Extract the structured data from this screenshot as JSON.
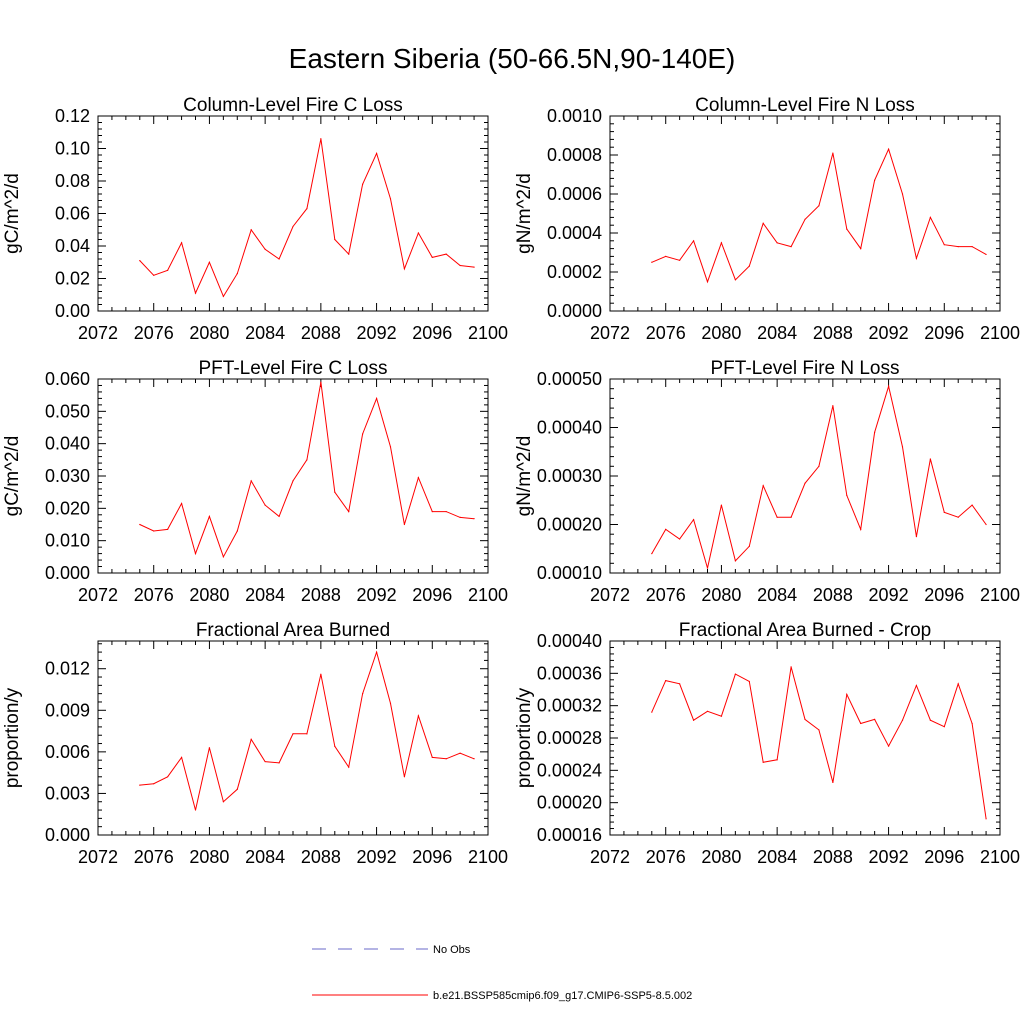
{
  "figure": {
    "title": "Eastern Siberia (50-66.5N,90-140E)"
  },
  "chart_data": [
    {
      "type": "line",
      "title": "Column-Level Fire C Loss",
      "xlabel": "",
      "ylabel": "gC/m^2/d",
      "xlim": [
        2072,
        2100
      ],
      "ylim": [
        0,
        0.12
      ],
      "xticks": [
        "2072",
        "2076",
        "2080",
        "2084",
        "2088",
        "2092",
        "2096",
        "2100"
      ],
      "yticks": [
        "0.00",
        "0.02",
        "0.04",
        "0.06",
        "0.08",
        "0.10",
        "0.12"
      ],
      "x": [
        2075,
        2076,
        2077,
        2078,
        2079,
        2080,
        2081,
        2082,
        2083,
        2084,
        2085,
        2086,
        2087,
        2088,
        2089,
        2090,
        2091,
        2092,
        2093,
        2094,
        2095,
        2096,
        2097,
        2098,
        2099
      ],
      "series": [
        {
          "color": "#ff0000",
          "values": [
            0.031,
            0.022,
            0.025,
            0.042,
            0.011,
            0.03,
            0.009,
            0.023,
            0.05,
            0.038,
            0.032,
            0.052,
            0.063,
            0.106,
            0.044,
            0.035,
            0.078,
            0.097,
            0.069,
            0.026,
            0.048,
            0.033,
            0.035,
            0.028,
            0.027
          ]
        }
      ]
    },
    {
      "type": "line",
      "title": "Column-Level Fire N Loss",
      "xlabel": "",
      "ylabel": "gN/m^2/d",
      "xlim": [
        2072,
        2100
      ],
      "ylim": [
        0,
        0.001
      ],
      "xticks": [
        "2072",
        "2076",
        "2080",
        "2084",
        "2088",
        "2092",
        "2096",
        "2100"
      ],
      "yticks": [
        "0.0000",
        "0.0002",
        "0.0004",
        "0.0006",
        "0.0008",
        "0.0010"
      ],
      "x": [
        2075,
        2076,
        2077,
        2078,
        2079,
        2080,
        2081,
        2082,
        2083,
        2084,
        2085,
        2086,
        2087,
        2088,
        2089,
        2090,
        2091,
        2092,
        2093,
        2094,
        2095,
        2096,
        2097,
        2098,
        2099
      ],
      "series": [
        {
          "color": "#ff0000",
          "values": [
            0.00025,
            0.00028,
            0.00026,
            0.00036,
            0.00015,
            0.00035,
            0.00016,
            0.00023,
            0.00045,
            0.00035,
            0.00033,
            0.00047,
            0.00054,
            0.00081,
            0.00042,
            0.00032,
            0.00067,
            0.00083,
            0.0006,
            0.00027,
            0.00048,
            0.00034,
            0.00033,
            0.00033,
            0.00029
          ]
        }
      ]
    },
    {
      "type": "line",
      "title": "PFT-Level Fire C Loss",
      "xlabel": "",
      "ylabel": "gC/m^2/d",
      "xlim": [
        2072,
        2100
      ],
      "ylim": [
        0,
        0.06
      ],
      "xticks": [
        "2072",
        "2076",
        "2080",
        "2084",
        "2088",
        "2092",
        "2096",
        "2100"
      ],
      "yticks": [
        "0.000",
        "0.010",
        "0.020",
        "0.030",
        "0.040",
        "0.050",
        "0.060"
      ],
      "x": [
        2075,
        2076,
        2077,
        2078,
        2079,
        2080,
        2081,
        2082,
        2083,
        2084,
        2085,
        2086,
        2087,
        2088,
        2089,
        2090,
        2091,
        2092,
        2093,
        2094,
        2095,
        2096,
        2097,
        2098,
        2099
      ],
      "series": [
        {
          "color": "#ff0000",
          "values": [
            0.015,
            0.013,
            0.0135,
            0.0215,
            0.006,
            0.0175,
            0.005,
            0.013,
            0.0285,
            0.021,
            0.0175,
            0.0285,
            0.035,
            0.059,
            0.025,
            0.019,
            0.043,
            0.054,
            0.039,
            0.015,
            0.0295,
            0.019,
            0.019,
            0.0172,
            0.0168
          ]
        }
      ]
    },
    {
      "type": "line",
      "title": "PFT-Level Fire N Loss",
      "xlabel": "",
      "ylabel": "gN/m^2/d",
      "xlim": [
        2072,
        2100
      ],
      "ylim": [
        0.0001,
        0.0005
      ],
      "xticks": [
        "2072",
        "2076",
        "2080",
        "2084",
        "2088",
        "2092",
        "2096",
        "2100"
      ],
      "yticks": [
        "0.00010",
        "0.00020",
        "0.00030",
        "0.00040",
        "0.00050"
      ],
      "x": [
        2075,
        2076,
        2077,
        2078,
        2079,
        2080,
        2081,
        2082,
        2083,
        2084,
        2085,
        2086,
        2087,
        2088,
        2089,
        2090,
        2091,
        2092,
        2093,
        2094,
        2095,
        2096,
        2097,
        2098,
        2099
      ],
      "series": [
        {
          "color": "#ff0000",
          "values": [
            0.00014,
            0.00019,
            0.00017,
            0.00021,
            0.00011,
            0.00024,
            0.000125,
            0.000155,
            0.00028,
            0.000215,
            0.000215,
            0.000285,
            0.00032,
            0.000445,
            0.00026,
            0.00019,
            0.00039,
            0.000485,
            0.00036,
            0.000175,
            0.000335,
            0.000225,
            0.000215,
            0.00024,
            0.0002
          ]
        }
      ]
    },
    {
      "type": "line",
      "title": "Fractional Area Burned",
      "xlabel": "",
      "ylabel": "proportion/y",
      "xlim": [
        2072,
        2100
      ],
      "ylim": [
        0,
        0.014
      ],
      "xticks": [
        "2072",
        "2076",
        "2080",
        "2084",
        "2088",
        "2092",
        "2096",
        "2100"
      ],
      "yticks": [
        "0.000",
        "0.003",
        "0.006",
        "0.009",
        "0.012"
      ],
      "x": [
        2075,
        2076,
        2077,
        2078,
        2079,
        2080,
        2081,
        2082,
        2083,
        2084,
        2085,
        2086,
        2087,
        2088,
        2089,
        2090,
        2091,
        2092,
        2093,
        2094,
        2095,
        2096,
        2097,
        2098,
        2099
      ],
      "series": [
        {
          "color": "#ff0000",
          "values": [
            0.0036,
            0.0037,
            0.0042,
            0.0056,
            0.0018,
            0.0063,
            0.0024,
            0.0033,
            0.0069,
            0.0053,
            0.0052,
            0.0073,
            0.0073,
            0.0116,
            0.0064,
            0.0049,
            0.0102,
            0.0132,
            0.0095,
            0.0042,
            0.0086,
            0.0056,
            0.0055,
            0.0059,
            0.0055
          ]
        }
      ]
    },
    {
      "type": "line",
      "title": "Fractional Area Burned - Crop",
      "xlabel": "",
      "ylabel": "proportion/y",
      "xlim": [
        2072,
        2100
      ],
      "ylim": [
        0.00016,
        0.0004
      ],
      "xticks": [
        "2072",
        "2076",
        "2080",
        "2084",
        "2088",
        "2092",
        "2096",
        "2100"
      ],
      "yticks": [
        "0.00016",
        "0.00020",
        "0.00024",
        "0.00028",
        "0.00032",
        "0.00036",
        "0.00040"
      ],
      "x": [
        2075,
        2076,
        2077,
        2078,
        2079,
        2080,
        2081,
        2082,
        2083,
        2084,
        2085,
        2086,
        2087,
        2088,
        2089,
        2090,
        2091,
        2092,
        2093,
        2094,
        2095,
        2096,
        2097,
        2098,
        2099
      ],
      "series": [
        {
          "color": "#ff0000",
          "values": [
            0.000312,
            0.000351,
            0.000347,
            0.000302,
            0.000313,
            0.000307,
            0.000359,
            0.00035,
            0.00025,
            0.000253,
            0.000368,
            0.000303,
            0.00029,
            0.000225,
            0.000334,
            0.000298,
            0.000303,
            0.00027,
            0.000302,
            0.000345,
            0.000302,
            0.000294,
            0.000347,
            0.000298,
            0.00018
          ]
        }
      ]
    }
  ],
  "legend": {
    "position": "bottom",
    "items": [
      {
        "label": "No Obs",
        "color": "#6a6ac8",
        "dash": true
      },
      {
        "label": "b.e21.BSSP585cmip6.f09_g17.CMIP6-SSP5-8.5.002",
        "color": "#ff0000",
        "dash": false
      }
    ]
  }
}
